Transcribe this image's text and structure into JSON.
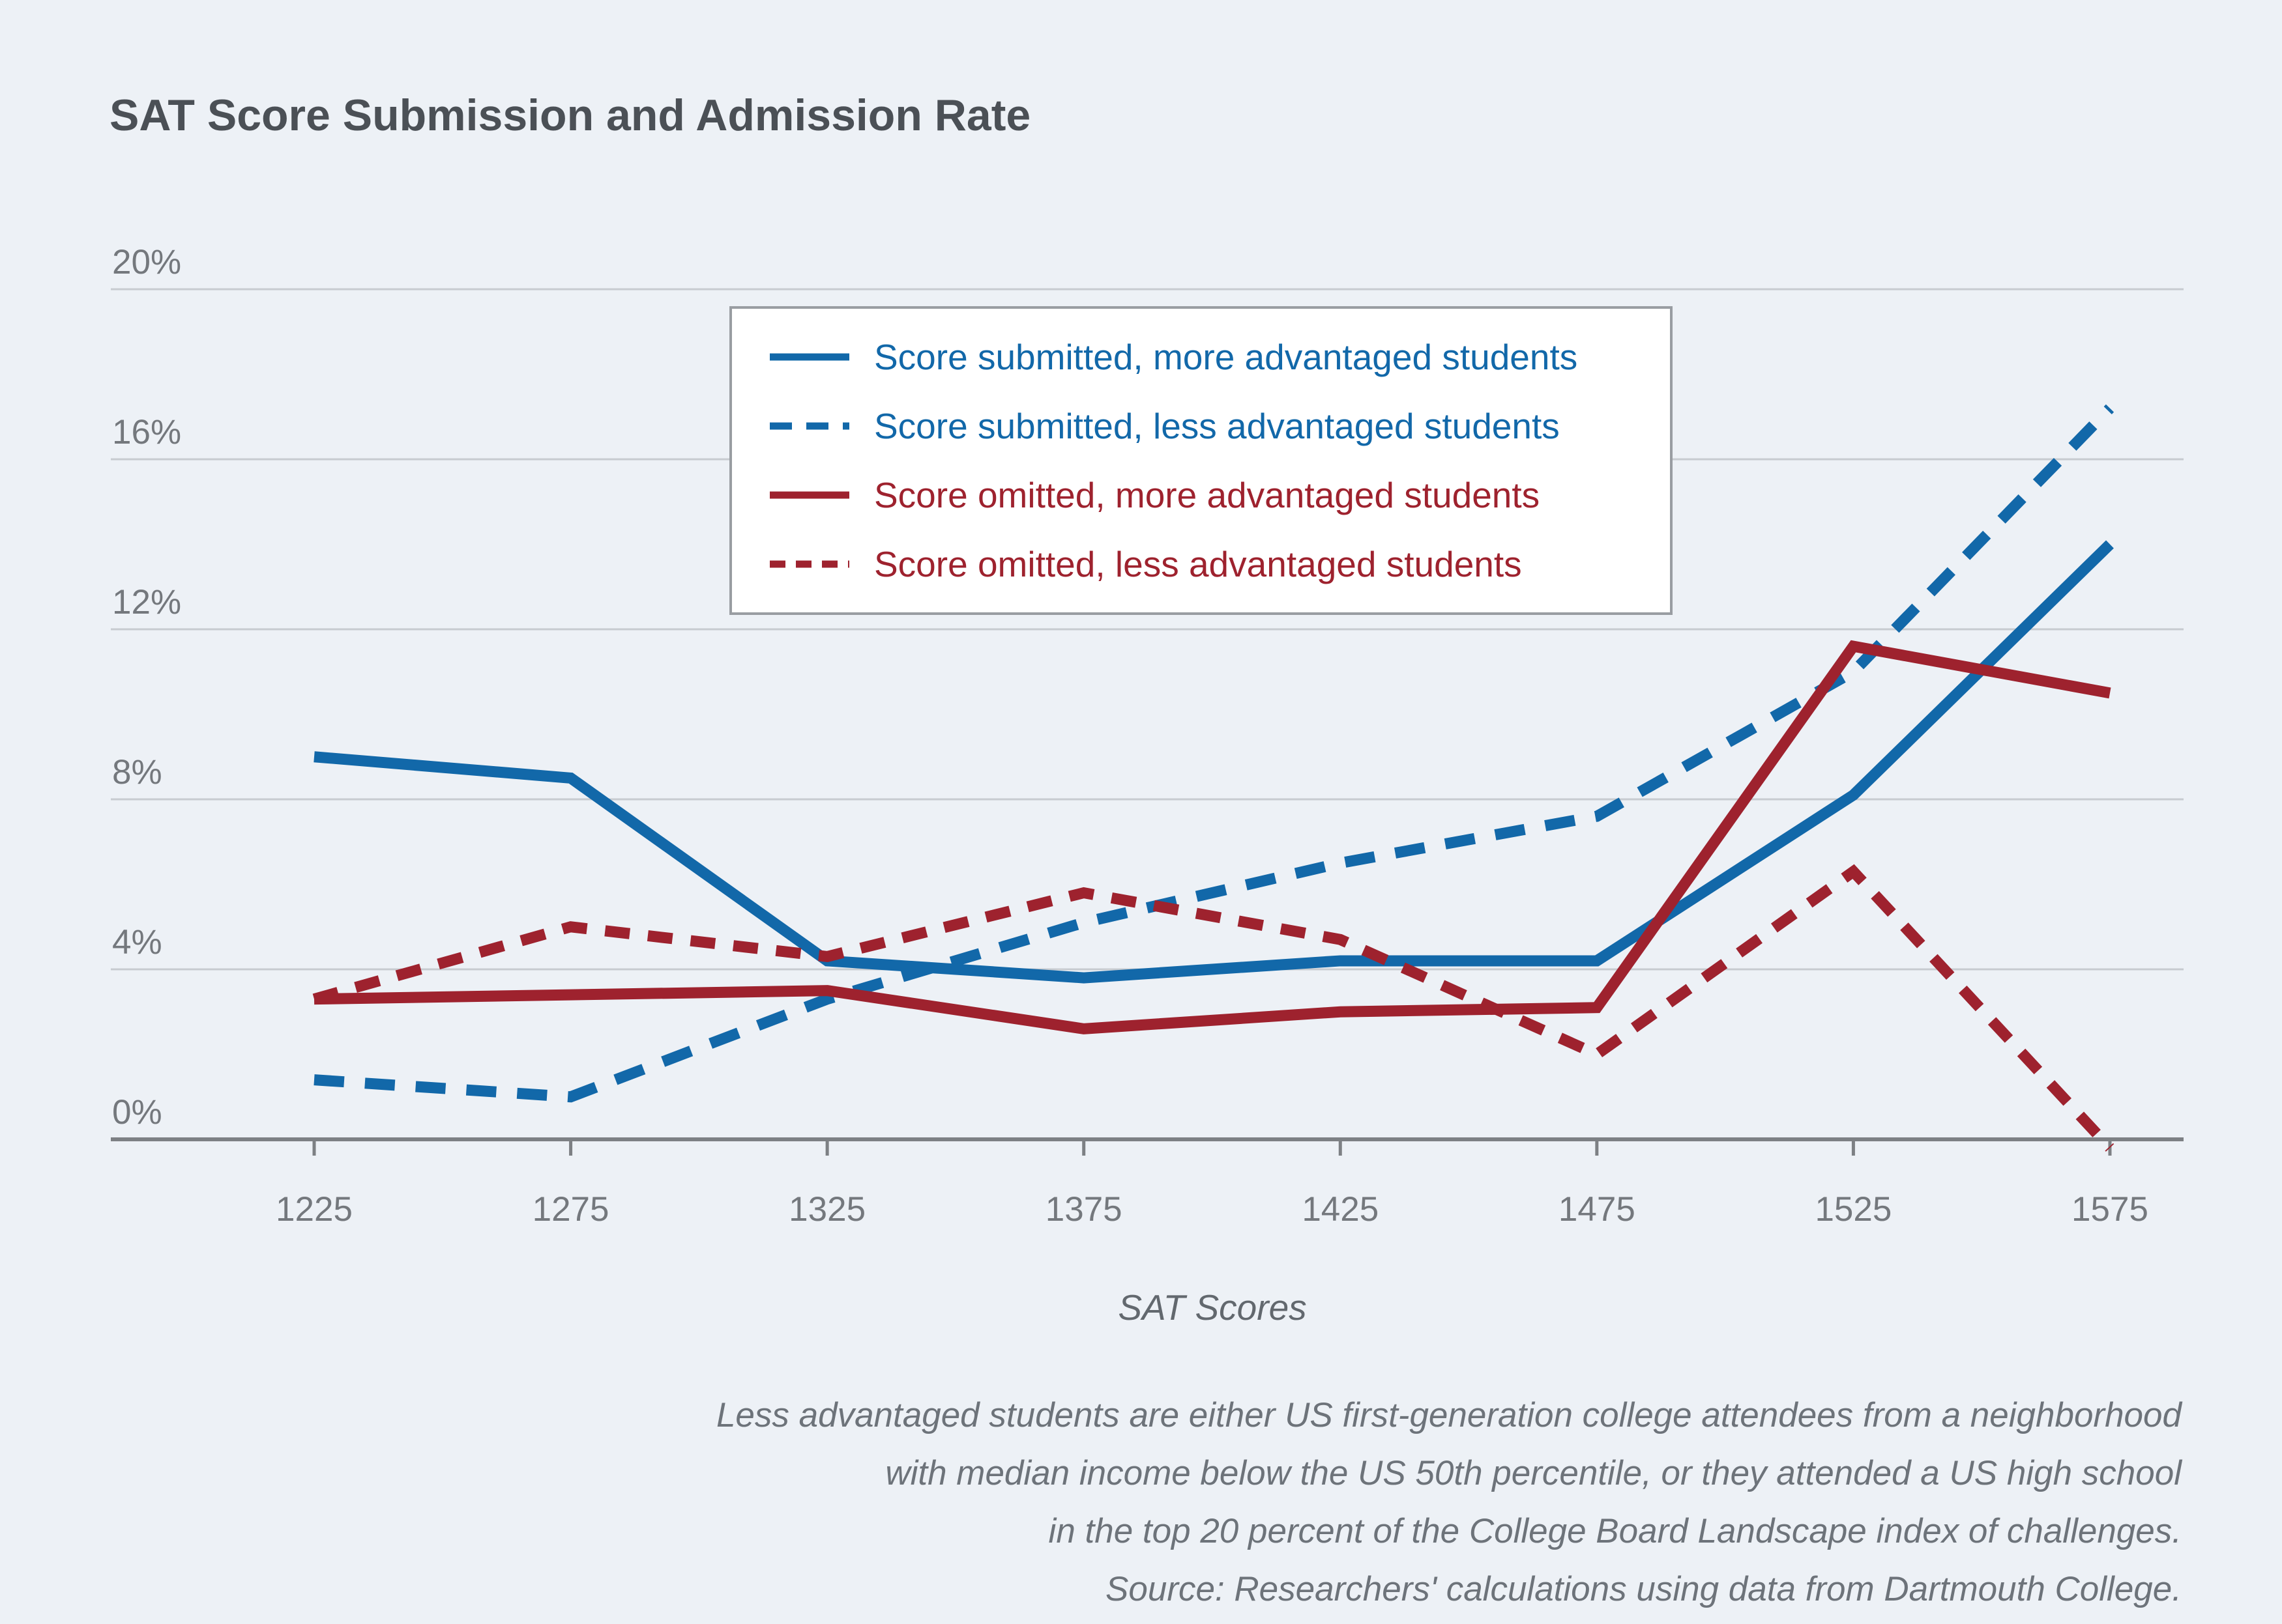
{
  "title": "SAT Score Submission and Admission Rate",
  "colors": {
    "background": "#edf1f6",
    "blue": "#1268a9",
    "red": "#9e222e",
    "grid": "#c7cbd0",
    "axis": "#7d8084",
    "title_text": "#4b5056",
    "tick_text": "#74787d",
    "footnote_text": "#6d737a",
    "legend_border": "#999da2",
    "legend_background": "#ffffff"
  },
  "chart_data": {
    "type": "line",
    "title": "SAT Score Submission and Admission Rate",
    "xlabel": "SAT Scores",
    "ylabel": "",
    "categories": [
      1225,
      1275,
      1325,
      1375,
      1425,
      1475,
      1525,
      1575
    ],
    "y_ticks": [
      0,
      4,
      8,
      12,
      16,
      20
    ],
    "ytick_labels": [
      "0%",
      "4%",
      "8%",
      "12%",
      "16%",
      "20%"
    ],
    "ylim": [
      0,
      20
    ],
    "grid": true,
    "legend_position": "top-center-inside",
    "series": [
      {
        "name": "Score submitted, more advantaged students",
        "color": "#1268a9",
        "style": "solid",
        "values": [
          9.0,
          8.5,
          4.2,
          3.8,
          4.2,
          4.2,
          8.1,
          14.0
        ]
      },
      {
        "name": "Score submitted, less advantaged students",
        "color": "#1268a9",
        "style": "dashed",
        "values": [
          1.4,
          1.0,
          3.3,
          5.1,
          6.5,
          7.6,
          11.0,
          17.2
        ]
      },
      {
        "name": "Score omitted, more advantaged students",
        "color": "#9e222e",
        "style": "solid",
        "values": [
          3.3,
          3.4,
          3.5,
          2.6,
          3.0,
          3.1,
          11.6,
          10.5
        ]
      },
      {
        "name": "Score omitted, less advantaged students",
        "color": "#9e222e",
        "style": "dashed",
        "values": [
          3.3,
          5.0,
          4.3,
          5.8,
          4.7,
          2.0,
          6.3,
          -0.2
        ]
      }
    ]
  },
  "footnote": {
    "lines": [
      "Less advantaged students are either US first-generation college attendees from a neighborhood",
      "with median income below the US 50th percentile, or they attended a US high school",
      "in the top 20 percent of the College Board Landscape index of challenges.",
      "Source: Researchers' calculations using data from Dartmouth College."
    ]
  }
}
